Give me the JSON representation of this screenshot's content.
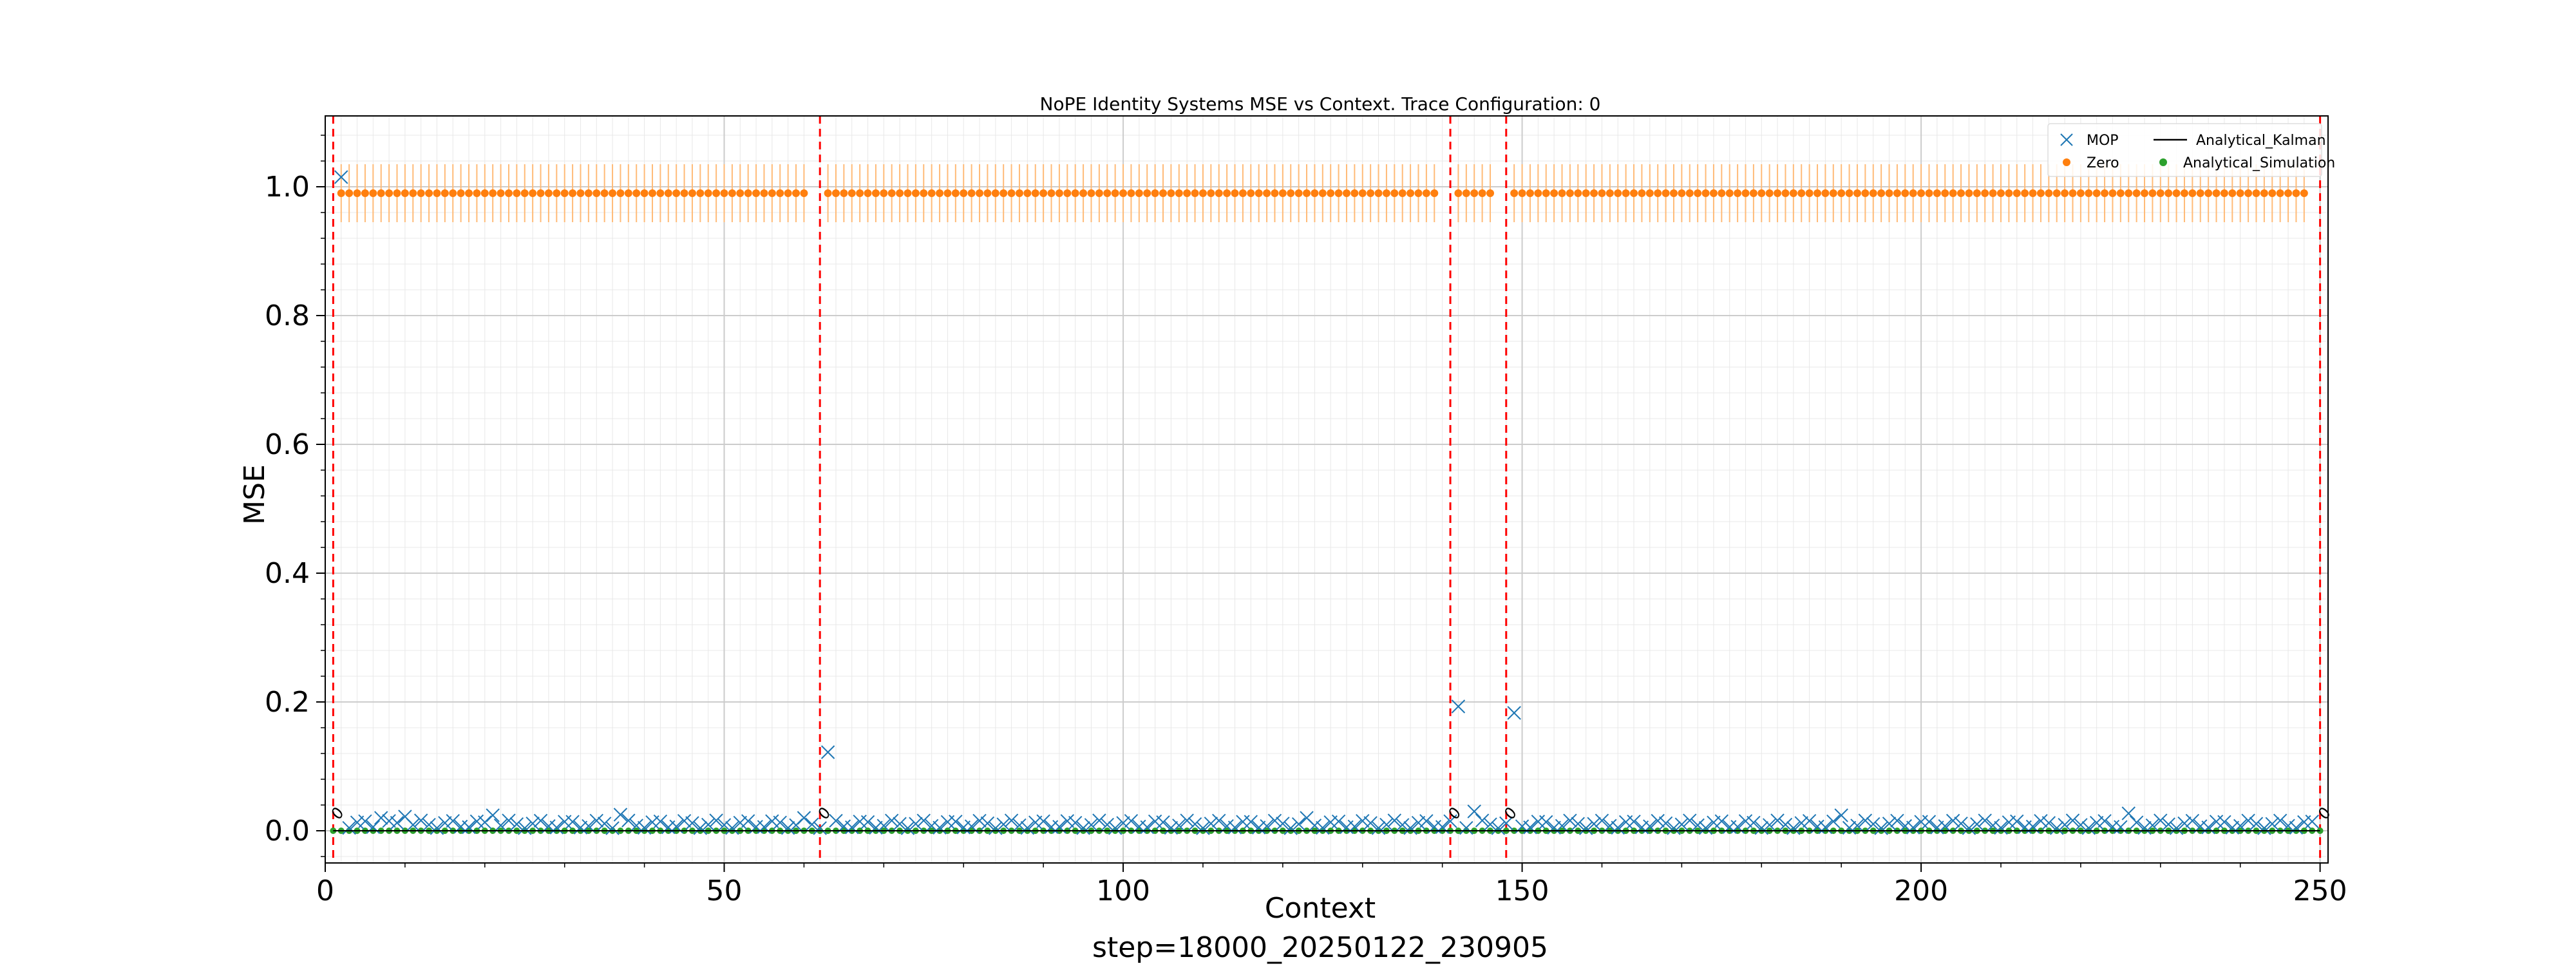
{
  "chart_data": {
    "type": "scatter",
    "title": "NoPE Identity Systems MSE vs Context. Trace Configuration: 0",
    "xlabel": "Context",
    "ylabel": "MSE",
    "footer": "step=18000_20250122_230905",
    "xlim": [
      0,
      251
    ],
    "ylim": [
      -0.05,
      1.11
    ],
    "xticks": [
      0,
      50,
      100,
      150,
      200,
      250
    ],
    "yticks": [
      0.0,
      0.2,
      0.4,
      0.6,
      0.8,
      1.0
    ],
    "xtick_labels": [
      "0",
      "50",
      "100",
      "150",
      "200",
      "250"
    ],
    "ytick_labels": [
      "0.0",
      "0.2",
      "0.4",
      "0.6",
      "0.8",
      "1.0"
    ],
    "grid": true,
    "minor_grid": true,
    "legend_position": "top-right",
    "legend": [
      {
        "name": "MOP",
        "marker": "x",
        "color": "#1f77b4"
      },
      {
        "name": "Analytical_Kalman",
        "marker": "line",
        "color": "#000000"
      },
      {
        "name": "Zero",
        "marker": "dot",
        "color": "#ff7f0e"
      },
      {
        "name": "Analytical_Simulation",
        "marker": "dot",
        "color": "#2ca02c"
      }
    ],
    "vertical_lines": [
      {
        "x": 1,
        "label": "0",
        "color": "#ff0000",
        "style": "dashed"
      },
      {
        "x": 62,
        "label": "0",
        "color": "#ff0000",
        "style": "dashed"
      },
      {
        "x": 141,
        "label": "0",
        "color": "#ff0000",
        "style": "dashed"
      },
      {
        "x": 148,
        "label": "0",
        "color": "#ff0000",
        "style": "dashed"
      },
      {
        "x": 250,
        "label": "0",
        "color": "#ff0000",
        "style": "dashed"
      }
    ],
    "series": [
      {
        "name": "Zero",
        "color": "#ff7f0e",
        "value": 0.99,
        "error": 0.045,
        "x_segments": [
          [
            2,
            60
          ],
          [
            63,
            139
          ],
          [
            142,
            146
          ],
          [
            149,
            248
          ]
        ]
      },
      {
        "name": "MOP",
        "color": "#1f77b4",
        "baseline": 0.01,
        "outliers": [
          {
            "x": 2,
            "y": 1.015
          },
          {
            "x": 63,
            "y": 0.122
          },
          {
            "x": 142,
            "y": 0.193
          },
          {
            "x": 149,
            "y": 0.183
          },
          {
            "x": 144,
            "y": 0.03
          },
          {
            "x": 37,
            "y": 0.025
          },
          {
            "x": 21,
            "y": 0.024
          },
          {
            "x": 10,
            "y": 0.022
          },
          {
            "x": 7,
            "y": 0.02
          },
          {
            "x": 60,
            "y": 0.02
          },
          {
            "x": 123,
            "y": 0.02
          },
          {
            "x": 190,
            "y": 0.024
          },
          {
            "x": 226,
            "y": 0.027
          }
        ]
      },
      {
        "name": "Analytical_Simulation",
        "color": "#2ca02c",
        "value": 0.0
      },
      {
        "name": "Analytical_Kalman",
        "color": "#000000",
        "value": 0.0
      }
    ]
  }
}
